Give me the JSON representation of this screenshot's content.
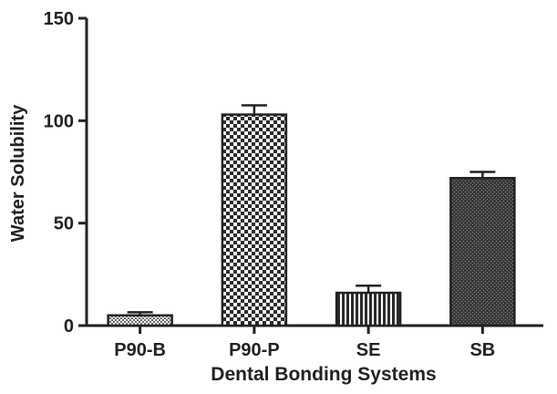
{
  "chart_data": {
    "type": "bar",
    "title": "",
    "xlabel": "Dental Bonding Systems",
    "ylabel": "Water Solubility",
    "ylim": [
      0,
      150
    ],
    "yticks": [
      0,
      50,
      100,
      150
    ],
    "grid": false,
    "legend": "none",
    "categories": [
      "P90-B",
      "P90-P",
      "SE",
      "SB"
    ],
    "values": [
      5,
      103,
      16,
      72
    ],
    "errors": [
      1.5,
      4.5,
      3.5,
      3
    ],
    "patterns": [
      "fine-dots",
      "checker",
      "vertical-stripes",
      "dense-dark"
    ],
    "colors": {
      "axis": "#222222",
      "bar_outline": "#222222",
      "pattern_dark": "#2b2b2b",
      "pattern_light": "#ffffff"
    }
  }
}
